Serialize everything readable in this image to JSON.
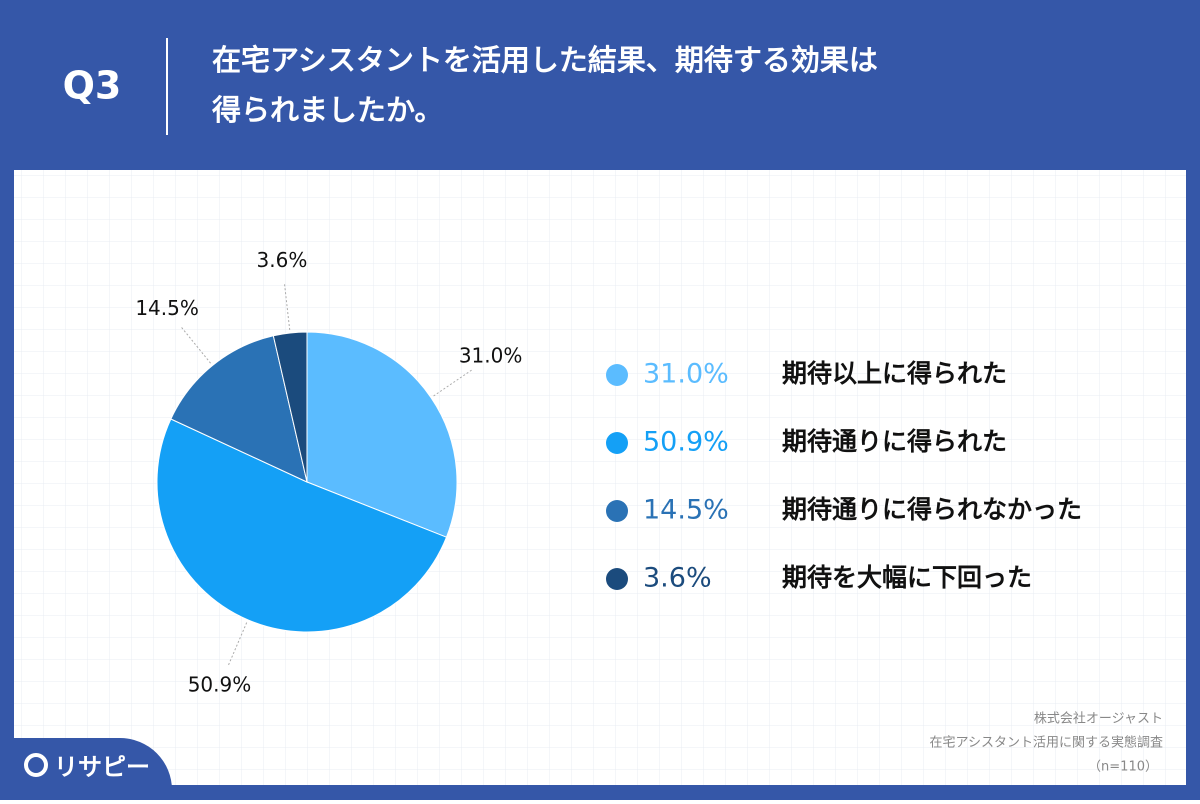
{
  "header": {
    "question": "Q3",
    "title_lines": [
      "在宅アシスタントを活用した結果、期待する効果は",
      "得られましたか。"
    ]
  },
  "chart_data": {
    "type": "pie",
    "categories": [
      "期待以上に得られた",
      "期待通りに得られた",
      "期待通りに得られなかった",
      "期待を大幅に下回った"
    ],
    "values": [
      31.0,
      50.9,
      14.5,
      3.6
    ],
    "value_labels": [
      "31.0%",
      "50.9%",
      "14.5%",
      "3.6%"
    ],
    "colors": [
      "#5bbcff",
      "#14a0f6",
      "#2a72b5",
      "#1b4b7d"
    ]
  },
  "source": {
    "lines": [
      "株式会社オージャスト",
      "在宅アシスタント活用に関する実態調査",
      "（n=110）"
    ]
  },
  "logo": "リサピー"
}
